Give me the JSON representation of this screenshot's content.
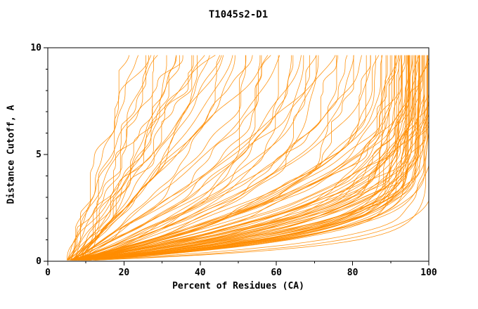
{
  "chart_data": {
    "type": "line",
    "title": "T1045s2-D1",
    "xlabel": "Percent of Residues (CA)",
    "ylabel": "Distance Cutoff, A",
    "xlim": [
      0,
      100
    ],
    "ylim": [
      0,
      10
    ],
    "x_ticks": [
      0,
      20,
      40,
      60,
      80,
      100
    ],
    "x_minor_ticks": [
      10,
      30,
      50,
      70,
      90
    ],
    "y_ticks": [
      0,
      5,
      10
    ],
    "y_minor_ticks": [
      1,
      2,
      3,
      4,
      6,
      7,
      8,
      9
    ],
    "line_color": "#FF8C00",
    "axis_color": "#000000",
    "background": "#FFFFFF",
    "legend": "none",
    "grid": "off",
    "curve_model": "x(y) = x0 + (x10 - x0) * (1 - (1 - y/10)^k); each entry is [x0, x10, k] estimated from plot",
    "curves": [
      [
        5,
        22,
        1.0
      ],
      [
        6,
        25,
        0.9
      ],
      [
        5,
        27,
        1.2
      ],
      [
        7,
        30,
        1.1
      ],
      [
        6,
        32,
        0.8
      ],
      [
        8,
        34,
        1.3
      ],
      [
        5,
        35,
        1.0
      ],
      [
        7,
        38,
        1.5
      ],
      [
        6,
        40,
        1.2
      ],
      [
        9,
        42,
        0.9
      ],
      [
        5,
        44,
        1.6
      ],
      [
        8,
        46,
        1.1
      ],
      [
        6,
        48,
        1.4
      ],
      [
        7,
        28,
        0.7
      ],
      [
        5,
        31,
        1.8
      ],
      [
        10,
        36,
        1.0
      ],
      [
        6,
        39,
        2.0
      ],
      [
        8,
        43,
        1.3
      ],
      [
        5,
        47,
        0.8
      ],
      [
        7,
        33,
        1.6
      ],
      [
        9,
        26,
        1.2
      ],
      [
        6,
        45,
        2.2
      ],
      [
        5,
        50,
        1.5
      ],
      [
        6,
        52,
        2.0
      ],
      [
        7,
        54,
        1.2
      ],
      [
        5,
        56,
        2.5
      ],
      [
        8,
        58,
        1.8
      ],
      [
        6,
        60,
        3.0
      ],
      [
        7,
        62,
        1.4
      ],
      [
        5,
        64,
        2.2
      ],
      [
        9,
        66,
        2.8
      ],
      [
        6,
        68,
        1.6
      ],
      [
        7,
        70,
        3.2
      ],
      [
        5,
        72,
        2.0
      ],
      [
        8,
        74,
        2.6
      ],
      [
        6,
        76,
        1.3
      ],
      [
        7,
        78,
        3.5
      ],
      [
        5,
        80,
        2.4
      ],
      [
        6,
        82,
        1.9
      ],
      [
        8,
        84,
        3.0
      ],
      [
        5,
        85,
        2.2
      ],
      [
        7,
        51,
        4.0
      ],
      [
        6,
        55,
        3.6
      ],
      [
        5,
        59,
        1.1
      ],
      [
        8,
        63,
        2.9
      ],
      [
        6,
        67,
        3.8
      ],
      [
        7,
        71,
        1.7
      ],
      [
        5,
        75,
        4.2
      ],
      [
        6,
        79,
        2.1
      ],
      [
        7,
        83,
        3.3
      ],
      [
        5,
        86,
        3.0
      ],
      [
        6,
        87,
        4.5
      ],
      [
        5,
        88,
        2.8
      ],
      [
        7,
        88,
        5.5
      ],
      [
        6,
        89,
        3.5
      ],
      [
        5,
        89,
        6.5
      ],
      [
        7,
        90,
        4.0
      ],
      [
        6,
        90,
        7.5
      ],
      [
        5,
        91,
        3.2
      ],
      [
        8,
        91,
        5.0
      ],
      [
        6,
        91,
        8.0
      ],
      [
        5,
        92,
        4.2
      ],
      [
        7,
        92,
        6.0
      ],
      [
        6,
        92,
        3.0
      ],
      [
        5,
        93,
        5.2
      ],
      [
        7,
        93,
        7.0
      ],
      [
        6,
        93,
        4.6
      ],
      [
        5,
        93,
        8.5
      ],
      [
        6,
        94,
        3.4
      ],
      [
        7,
        94,
        5.8
      ],
      [
        5,
        94,
        7.8
      ],
      [
        6,
        94,
        4.4
      ],
      [
        8,
        95,
        6.4
      ],
      [
        5,
        95,
        3.8
      ],
      [
        6,
        95,
        8.2
      ],
      [
        7,
        95,
        5.4
      ],
      [
        5,
        95,
        4.8
      ],
      [
        6,
        96,
        7.2
      ],
      [
        7,
        96,
        3.6
      ],
      [
        5,
        96,
        6.8
      ],
      [
        6,
        96,
        5.0
      ],
      [
        8,
        96,
        8.8
      ],
      [
        5,
        97,
        4.0
      ],
      [
        6,
        97,
        7.4
      ],
      [
        7,
        97,
        5.6
      ],
      [
        5,
        97,
        3.3
      ],
      [
        6,
        97,
        8.4
      ],
      [
        7,
        98,
        6.2
      ],
      [
        5,
        98,
        4.6
      ],
      [
        6,
        98,
        7.6
      ],
      [
        8,
        98,
        5.2
      ],
      [
        5,
        98,
        3.7
      ],
      [
        6,
        99,
        6.6
      ],
      [
        7,
        99,
        8.6
      ],
      [
        5,
        99,
        4.3
      ],
      [
        6,
        99,
        5.9
      ],
      [
        7,
        99,
        7.1
      ],
      [
        5,
        100,
        3.9
      ],
      [
        6,
        100,
        6.1
      ],
      [
        7,
        100,
        8.0
      ],
      [
        5,
        100,
        4.9
      ],
      [
        6,
        100,
        7.0
      ],
      [
        8,
        87,
        2.6
      ],
      [
        5,
        88,
        9.0
      ],
      [
        6,
        90,
        2.9
      ],
      [
        7,
        91,
        9.2
      ],
      [
        5,
        92,
        2.7
      ],
      [
        6,
        93,
        9.5
      ],
      [
        8,
        94,
        2.8
      ],
      [
        5,
        95,
        9.8
      ],
      [
        6,
        96,
        2.6
      ],
      [
        7,
        97,
        9.0
      ],
      [
        5,
        99,
        16
      ],
      [
        6,
        100,
        14
      ],
      [
        5,
        98,
        12
      ]
    ]
  }
}
